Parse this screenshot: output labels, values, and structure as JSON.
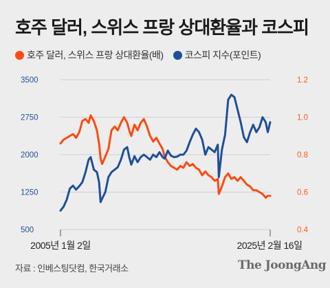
{
  "header": {
    "title": "호주 달러, 스위스 프랑 상대환율과 코스피"
  },
  "footer": {
    "source": "자료 : 인베스팅닷컴, 한국거래소",
    "logo": "The JoongAng"
  },
  "chart_data": {
    "type": "line",
    "title": "호주 달러, 스위스 프랑 상대환율과 코스피",
    "grid": true,
    "legend_position": "top-left",
    "x_tick_labels": [
      "2005년 1월 2일",
      "2025년 2월 16일"
    ],
    "y_left": {
      "ticks": [
        500,
        1250,
        2000,
        2750,
        3500
      ],
      "tick_labels": [
        "500",
        "1250",
        "2000",
        "2750",
        "3500"
      ],
      "range": [
        500,
        3500
      ],
      "color": "#1f4e99"
    },
    "y_right": {
      "ticks": [
        0.4,
        0.6,
        0.8,
        1.0,
        1.2
      ],
      "tick_labels": [
        "0.4",
        "0.6",
        "0.8",
        "1.0",
        "1.2"
      ],
      "range": [
        0.4,
        1.2
      ],
      "color": "#ff5a1f"
    },
    "x_range": [
      2005.0,
      2025.13
    ],
    "series": [
      {
        "name": "호주 달러, 스위스 프랑 상대환율(배)",
        "axis": "right",
        "color": "#ff4a12",
        "x": [
          2005.0,
          2005.3,
          2005.6,
          2005.9,
          2006.2,
          2006.5,
          2006.8,
          2007.1,
          2007.4,
          2007.7,
          2007.9,
          2008.2,
          2008.5,
          2008.7,
          2008.85,
          2009.0,
          2009.3,
          2009.6,
          2009.9,
          2010.2,
          2010.5,
          2010.8,
          2011.1,
          2011.4,
          2011.6,
          2011.8,
          2012.1,
          2012.4,
          2012.7,
          2013.0,
          2013.3,
          2013.6,
          2013.9,
          2014.2,
          2014.5,
          2014.8,
          2015.0,
          2015.3,
          2015.6,
          2015.9,
          2016.2,
          2016.5,
          2016.8,
          2017.1,
          2017.4,
          2017.7,
          2018.0,
          2018.3,
          2018.6,
          2018.9,
          2019.2,
          2019.5,
          2019.8,
          2020.1,
          2020.2,
          2020.5,
          2020.8,
          2021.1,
          2021.4,
          2021.7,
          2022.0,
          2022.3,
          2022.6,
          2022.9,
          2023.2,
          2023.5,
          2023.8,
          2024.1,
          2024.4,
          2024.7,
          2024.9,
          2025.13
        ],
        "y": [
          0.86,
          0.88,
          0.89,
          0.9,
          0.91,
          0.89,
          0.92,
          0.98,
          0.99,
          0.97,
          1.01,
          0.98,
          0.93,
          0.86,
          0.78,
          0.75,
          0.79,
          0.83,
          0.93,
          0.95,
          0.93,
          0.97,
          1.0,
          0.97,
          0.93,
          0.9,
          0.96,
          0.93,
          0.97,
          0.99,
          0.95,
          0.9,
          0.87,
          0.89,
          0.86,
          0.83,
          0.79,
          0.76,
          0.74,
          0.73,
          0.72,
          0.74,
          0.73,
          0.76,
          0.74,
          0.75,
          0.73,
          0.72,
          0.69,
          0.71,
          0.69,
          0.68,
          0.66,
          0.67,
          0.59,
          0.63,
          0.68,
          0.7,
          0.67,
          0.68,
          0.66,
          0.68,
          0.66,
          0.64,
          0.63,
          0.61,
          0.61,
          0.6,
          0.59,
          0.57,
          0.58,
          0.58
        ]
      },
      {
        "name": "코스피 지수(포인트)",
        "axis": "left",
        "color": "#1f4e99",
        "x": [
          2005.0,
          2005.3,
          2005.6,
          2005.9,
          2006.2,
          2006.5,
          2006.8,
          2007.1,
          2007.4,
          2007.7,
          2007.9,
          2008.2,
          2008.5,
          2008.7,
          2008.85,
          2009.0,
          2009.3,
          2009.6,
          2009.9,
          2010.2,
          2010.5,
          2010.8,
          2011.1,
          2011.4,
          2011.6,
          2011.8,
          2012.1,
          2012.4,
          2012.7,
          2013.0,
          2013.3,
          2013.6,
          2013.9,
          2014.2,
          2014.5,
          2014.8,
          2015.0,
          2015.3,
          2015.6,
          2015.9,
          2016.2,
          2016.5,
          2016.8,
          2017.1,
          2017.4,
          2017.7,
          2018.0,
          2018.3,
          2018.6,
          2018.9,
          2019.2,
          2019.5,
          2019.8,
          2020.1,
          2020.2,
          2020.5,
          2020.8,
          2021.1,
          2021.4,
          2021.7,
          2022.0,
          2022.3,
          2022.6,
          2022.9,
          2023.2,
          2023.5,
          2023.8,
          2024.1,
          2024.4,
          2024.7,
          2024.9,
          2025.13
        ],
        "y": [
          880,
          960,
          1100,
          1320,
          1380,
          1300,
          1370,
          1450,
          1650,
          1900,
          1950,
          1700,
          1650,
          1450,
          1050,
          1120,
          1250,
          1550,
          1650,
          1700,
          1750,
          1900,
          2100,
          2150,
          1950,
          1800,
          1970,
          1850,
          1950,
          2000,
          1950,
          1900,
          2000,
          1950,
          2050,
          1950,
          1920,
          2080,
          1980,
          1950,
          1960,
          2000,
          2000,
          2080,
          2250,
          2400,
          2520,
          2450,
          2300,
          2000,
          2150,
          2100,
          2050,
          2200,
          1550,
          2100,
          2400,
          3100,
          3200,
          3150,
          2900,
          2650,
          2350,
          2250,
          2450,
          2600,
          2450,
          2550,
          2750,
          2650,
          2450,
          2650
        ]
      }
    ]
  }
}
